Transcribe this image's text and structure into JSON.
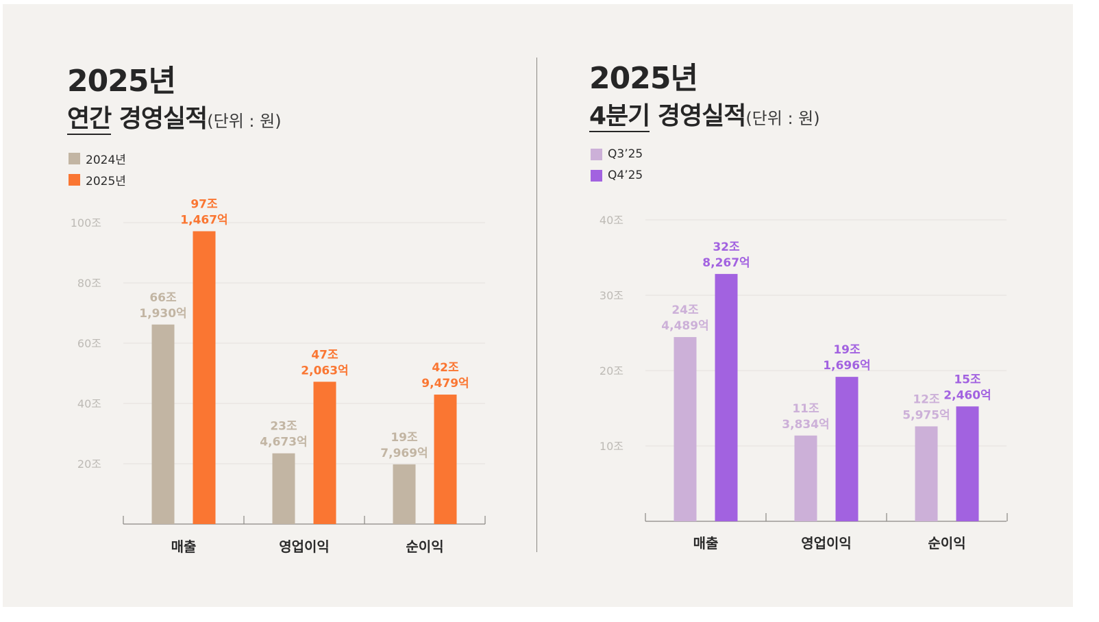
{
  "colors": {
    "c2024": "#c2b5a3",
    "c2025": "#fa7632",
    "cq3": "#ccb0d8",
    "cq4": "#a262e0"
  },
  "left": {
    "title_year": "2025년",
    "title_underlined": "연간",
    "title_rest": " 경영실적",
    "title_unit": "(단위 : 원)",
    "legend": [
      {
        "label": "2024년",
        "color": "#c2b5a3"
      },
      {
        "label": "2025년",
        "color": "#fa7632"
      }
    ]
  },
  "right": {
    "title_year": "2025년",
    "title_underlined": "4분기",
    "title_rest": " 경영실적",
    "title_unit": "(단위 : 원)",
    "legend": [
      {
        "label": "Q3’25",
        "color": "#ccb0d8"
      },
      {
        "label": "Q4’25",
        "color": "#a262e0"
      }
    ]
  },
  "chart_data": [
    {
      "type": "bar",
      "categories": [
        "매출",
        "영업이익",
        "순이익"
      ],
      "series": [
        {
          "name": "2024년",
          "color": "#c2b5a3",
          "values": [
            66.193,
            23.4673,
            19.7969
          ],
          "labels": [
            [
              "66조",
              "1,930억"
            ],
            [
              "23조",
              "4,673억"
            ],
            [
              "19조",
              "7,969억"
            ]
          ]
        },
        {
          "name": "2025년",
          "color": "#fa7632",
          "values": [
            97.1467,
            47.2063,
            42.9479
          ],
          "labels": [
            [
              "97조",
              "1,467억"
            ],
            [
              "47조",
              "2,063억"
            ],
            [
              "42조",
              "9,479억"
            ]
          ]
        }
      ],
      "yticks": [
        20,
        40,
        60,
        80,
        100
      ],
      "ytick_labels": [
        "20조",
        "40조",
        "60조",
        "80조",
        "100조"
      ],
      "ylim": [
        0,
        100
      ],
      "grid": true
    },
    {
      "type": "bar",
      "categories": [
        "매출",
        "영업이익",
        "순이익"
      ],
      "series": [
        {
          "name": "Q3’25",
          "color": "#ccb0d8",
          "values": [
            24.4489,
            11.3834,
            12.5975
          ],
          "labels": [
            [
              "24조",
              "4,489억"
            ],
            [
              "11조",
              "3,834억"
            ],
            [
              "12조",
              "5,975억"
            ]
          ]
        },
        {
          "name": "Q4’25",
          "color": "#a262e0",
          "values": [
            32.8267,
            19.1696,
            15.246
          ],
          "labels": [
            [
              "32조",
              "8,267억"
            ],
            [
              "19조",
              "1,696억"
            ],
            [
              "15조",
              "2,460억"
            ]
          ]
        }
      ],
      "yticks": [
        10,
        20,
        30,
        40
      ],
      "ytick_labels": [
        "10조",
        "20조",
        "30조",
        "40조"
      ],
      "ylim": [
        0,
        40
      ],
      "grid": true
    }
  ]
}
